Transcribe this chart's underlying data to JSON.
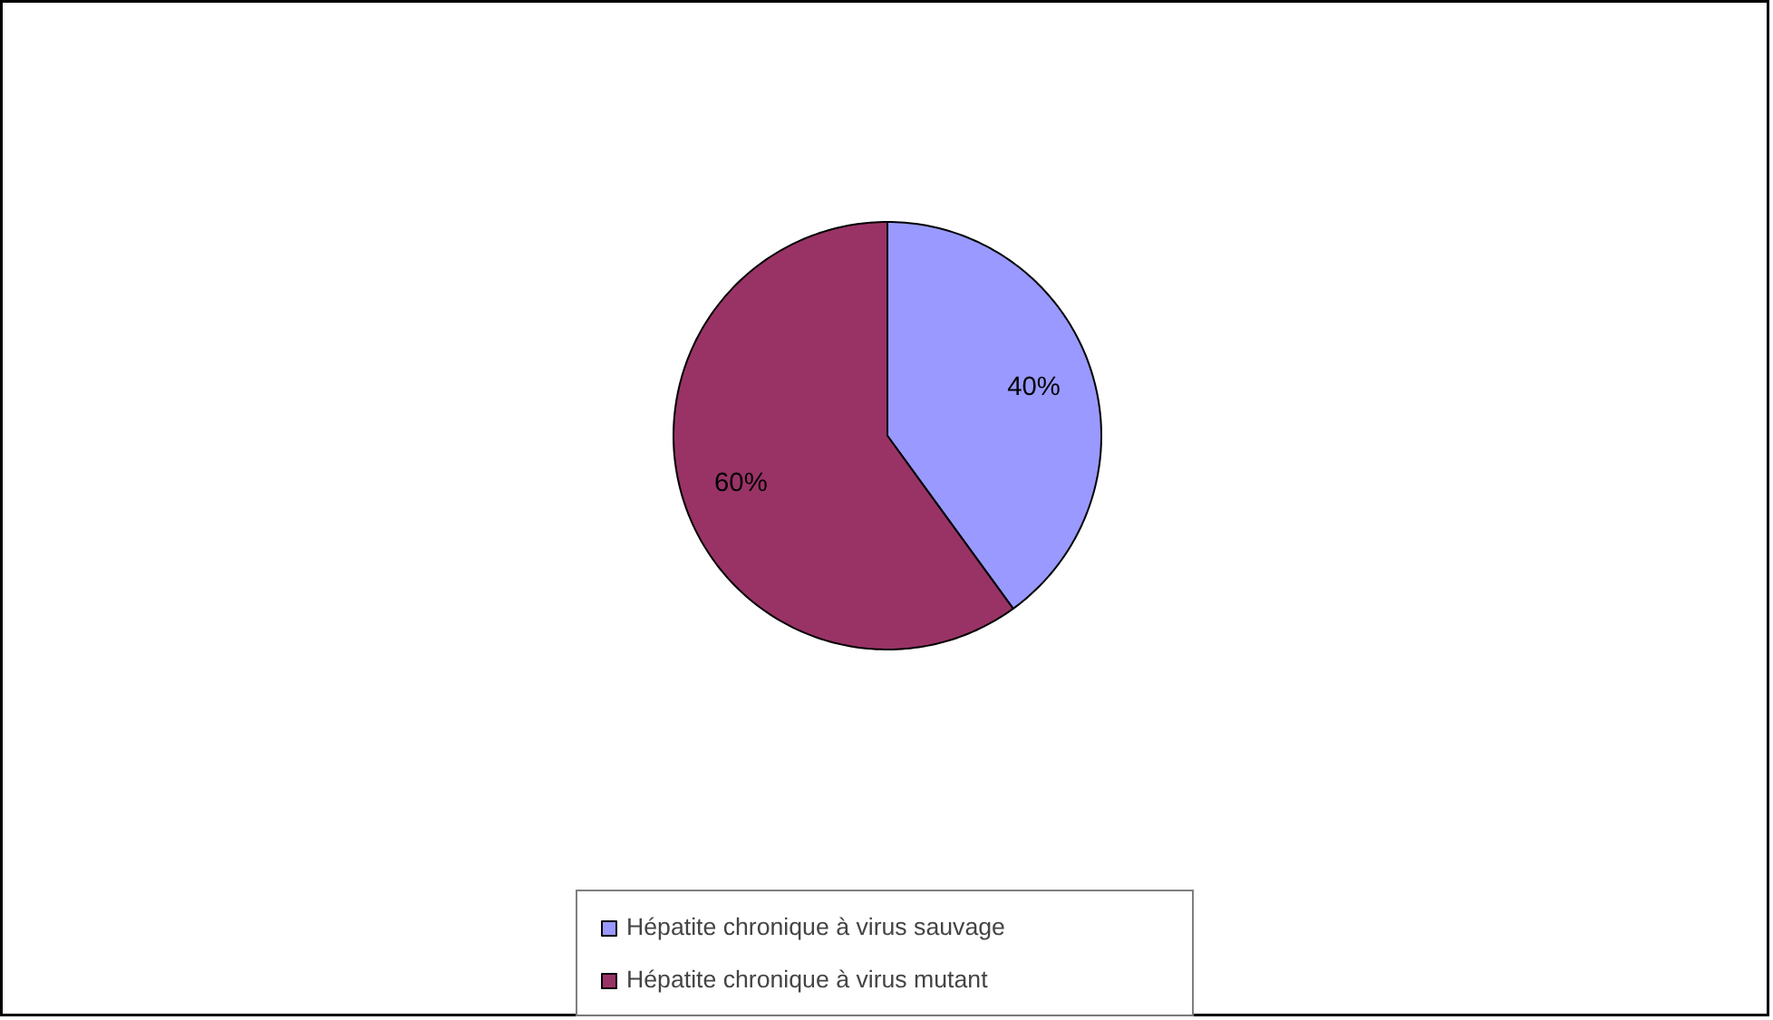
{
  "chart_data": {
    "type": "pie",
    "categories": [
      "Hépatite chronique à virus sauvage",
      "Hépatite chronique à virus mutant"
    ],
    "values": [
      40,
      60
    ],
    "colors": [
      "#9999ff",
      "#993366"
    ],
    "value_labels": [
      "40%",
      "60%"
    ],
    "legend": "bottom"
  }
}
